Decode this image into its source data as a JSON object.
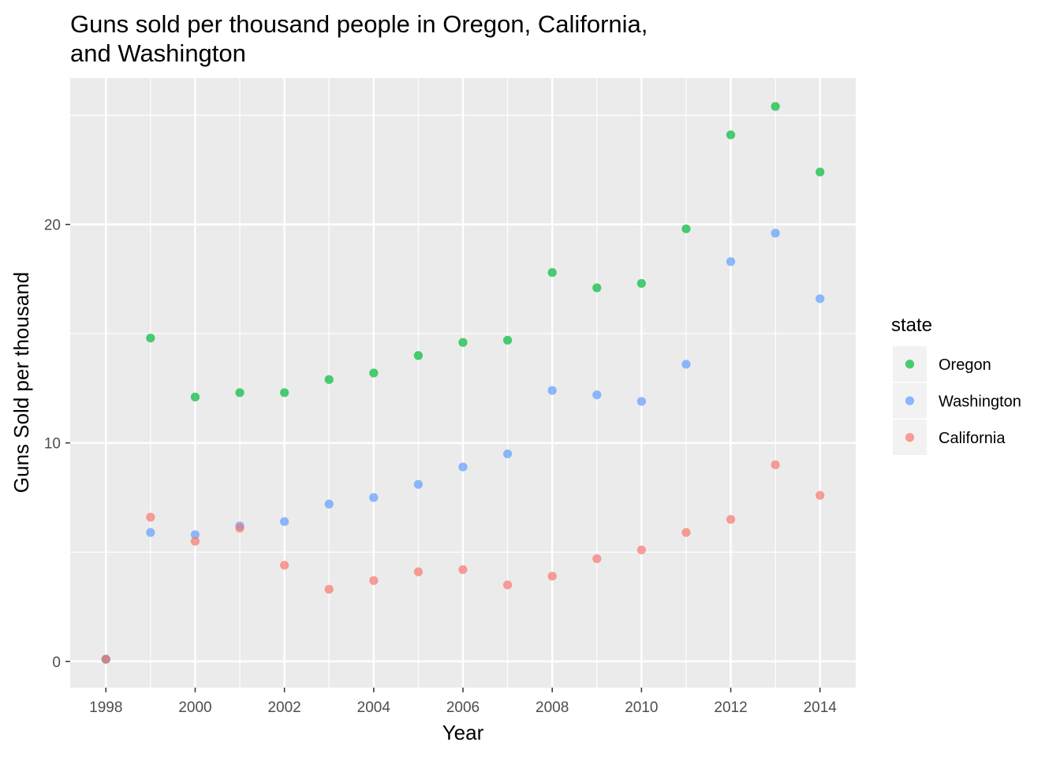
{
  "chart_data": {
    "type": "scatter",
    "title_lines": [
      "Guns sold per thousand people in Oregon, California,",
      "and Washington"
    ],
    "xlabel": "Year",
    "ylabel": "Guns Sold per thousand",
    "xlim": [
      1997.2,
      2014.8
    ],
    "ylim": [
      -1.2,
      26.7
    ],
    "x_ticks": [
      1998,
      2000,
      2002,
      2004,
      2006,
      2008,
      2010,
      2012,
      2014
    ],
    "x_minor_ticks": [
      1999,
      2001,
      2003,
      2005,
      2007,
      2009,
      2011,
      2013
    ],
    "y_ticks": [
      0,
      10,
      20
    ],
    "y_minor_ticks": [
      5,
      15,
      25
    ],
    "grid": true,
    "legend": {
      "title": "state",
      "position": "right"
    },
    "x": [
      1998,
      1999,
      2000,
      2001,
      2002,
      2003,
      2004,
      2005,
      2006,
      2007,
      2008,
      2009,
      2010,
      2011,
      2012,
      2013,
      2014
    ],
    "series": [
      {
        "name": "Oregon",
        "color": "#00BA38",
        "values": [
          0.1,
          14.8,
          12.1,
          12.3,
          12.3,
          12.9,
          13.2,
          14.0,
          14.6,
          14.7,
          17.8,
          17.1,
          17.3,
          19.8,
          24.1,
          25.4,
          22.4
        ]
      },
      {
        "name": "Washington",
        "color": "#619CFF",
        "values": [
          0.1,
          5.9,
          5.8,
          6.2,
          6.4,
          7.2,
          7.5,
          8.1,
          8.9,
          9.5,
          12.4,
          12.2,
          11.9,
          13.6,
          18.3,
          19.6,
          16.6
        ]
      },
      {
        "name": "California",
        "color": "#F8766D",
        "values": [
          0.1,
          6.6,
          5.5,
          6.1,
          4.4,
          3.3,
          3.7,
          4.1,
          4.2,
          3.5,
          3.9,
          4.7,
          5.1,
          5.9,
          6.5,
          9.0,
          7.6
        ]
      }
    ]
  }
}
